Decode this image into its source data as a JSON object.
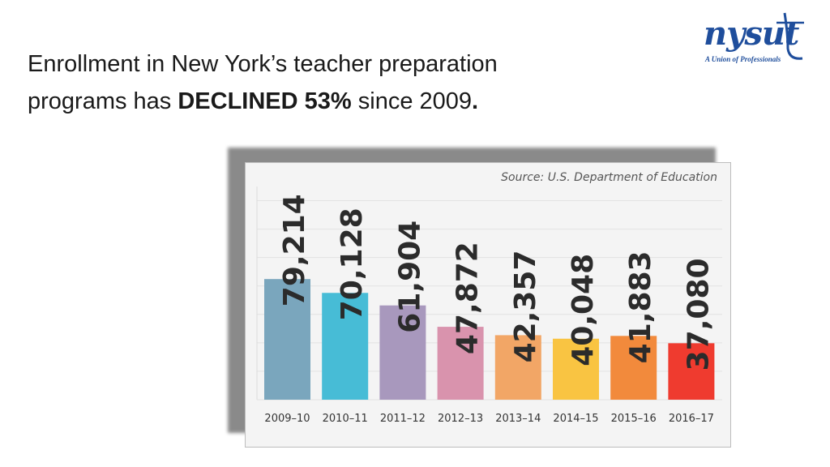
{
  "slide": {
    "title_line1": "Enrollment in New York’s  teacher preparation",
    "title_line2_pre": "programs has ",
    "title_line2_bold": "DECLINED 53%",
    "title_line2_post": " since 2009",
    "title_line2_end": "."
  },
  "logo": {
    "wordmark": "nysut",
    "tagline": "A Union of Professionals",
    "color": "#1f4e9c"
  },
  "chart_data": {
    "type": "bar",
    "source": "Source: U.S. Department of Education",
    "categories": [
      "2009–10",
      "2010–11",
      "2011–12",
      "2012–13",
      "2013–14",
      "2014–15",
      "2015–16",
      "2016–17"
    ],
    "values": [
      79214,
      70128,
      61904,
      47872,
      42357,
      40048,
      41883,
      37080
    ],
    "value_labels": [
      "79,214",
      "70,128",
      "61,904",
      "47,872",
      "42,357",
      "40,048",
      "41,883",
      "37,080"
    ],
    "colors": [
      "#7aa6bd",
      "#47bcd6",
      "#a898bd",
      "#d993ad",
      "#f2a666",
      "#f9c442",
      "#f28a3c",
      "#ef3b2f"
    ],
    "ylim": [
      0,
      140000
    ],
    "grid": true
  }
}
